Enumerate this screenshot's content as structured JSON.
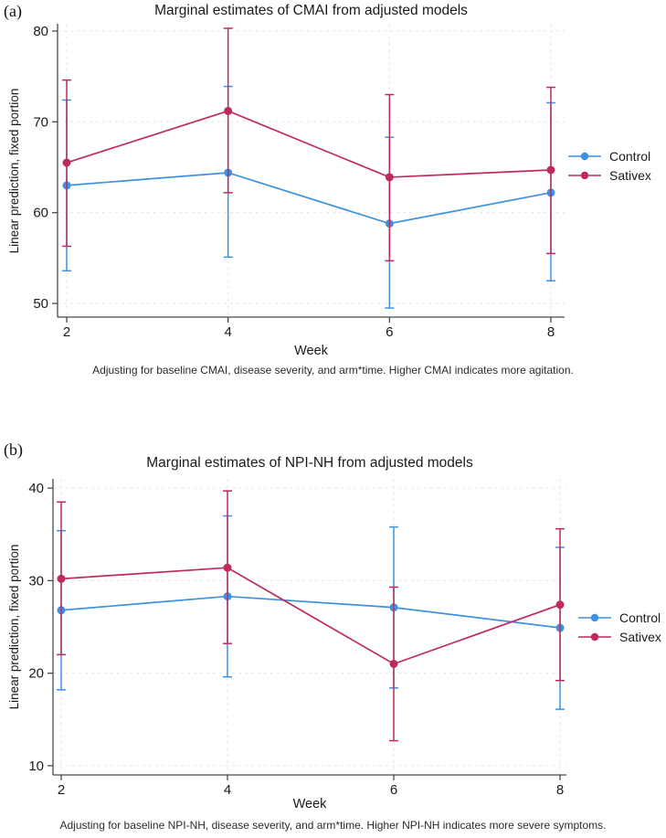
{
  "figure": {
    "panels": [
      {
        "panel_label": "(a)",
        "title": "Marginal estimates of CMAI from adjusted models",
        "ylabel": "Linear prediction, fixed portion",
        "xlabel": "Week",
        "caption": "Adjusting for baseline CMAI, disease severity, and arm*time. Higher CMAI indicates more agitation."
      },
      {
        "panel_label": "(b)",
        "title": "Marginal estimates of NPI-NH from adjusted models",
        "ylabel": "Linear prediction, fixed portion",
        "xlabel": "Week",
        "caption": "Adjusting for baseline NPI-NH, disease severity, and arm*time. Higher NPI-NH indicates more severe symptoms."
      }
    ]
  },
  "colors": {
    "control": "#3d91e0",
    "sativex": "#c02a5b",
    "grid": "#e8e8e8",
    "axis": "#4a4a4a",
    "text": "#1a1a1a"
  },
  "chart_data": [
    {
      "type": "line",
      "title": "Marginal estimates of CMAI from adjusted models",
      "xlabel": "Week",
      "ylabel": "Linear prediction, fixed portion",
      "x": [
        2,
        4,
        6,
        8
      ],
      "yticks": [
        50,
        60,
        70,
        80
      ],
      "ylim": [
        48.5,
        80.8
      ],
      "grid": "dashed",
      "legend_position": "right",
      "error_bars": true,
      "series": [
        {
          "name": "Control",
          "color": "#3d91e0",
          "values": [
            63.0,
            64.4,
            58.8,
            62.2
          ],
          "ci_low": [
            53.6,
            55.1,
            49.5,
            52.5
          ],
          "ci_high": [
            72.4,
            73.9,
            68.3,
            72.1
          ]
        },
        {
          "name": "Sativex",
          "color": "#c02a5b",
          "values": [
            65.5,
            71.2,
            63.9,
            64.7
          ],
          "ci_low": [
            56.3,
            62.2,
            54.7,
            55.5
          ],
          "ci_high": [
            74.6,
            80.3,
            73.0,
            73.8
          ]
        }
      ],
      "caption": "Adjusting for baseline CMAI, disease severity, and arm*time. Higher CMAI indicates more agitation."
    },
    {
      "type": "line",
      "title": "Marginal estimates of NPI-NH from adjusted models",
      "xlabel": "Week",
      "ylabel": "Linear prediction, fixed portion",
      "x": [
        2,
        4,
        6,
        8
      ],
      "yticks": [
        10,
        20,
        30,
        40
      ],
      "ylim": [
        9.0,
        41.0
      ],
      "grid": "dashed",
      "legend_position": "right",
      "error_bars": true,
      "series": [
        {
          "name": "Control",
          "color": "#3d91e0",
          "values": [
            26.8,
            28.3,
            27.1,
            24.9
          ],
          "ci_low": [
            18.2,
            19.6,
            18.4,
            16.1
          ],
          "ci_high": [
            35.4,
            37.0,
            35.8,
            33.6
          ]
        },
        {
          "name": "Sativex",
          "color": "#c02a5b",
          "values": [
            30.2,
            31.4,
            21.0,
            27.4
          ],
          "ci_low": [
            22.0,
            23.2,
            12.7,
            19.2
          ],
          "ci_high": [
            38.5,
            39.7,
            29.3,
            35.6
          ]
        }
      ],
      "caption": "Adjusting for baseline NPI-NH, disease severity, and arm*time. Higher NPI-NH indicates more severe symptoms."
    }
  ]
}
